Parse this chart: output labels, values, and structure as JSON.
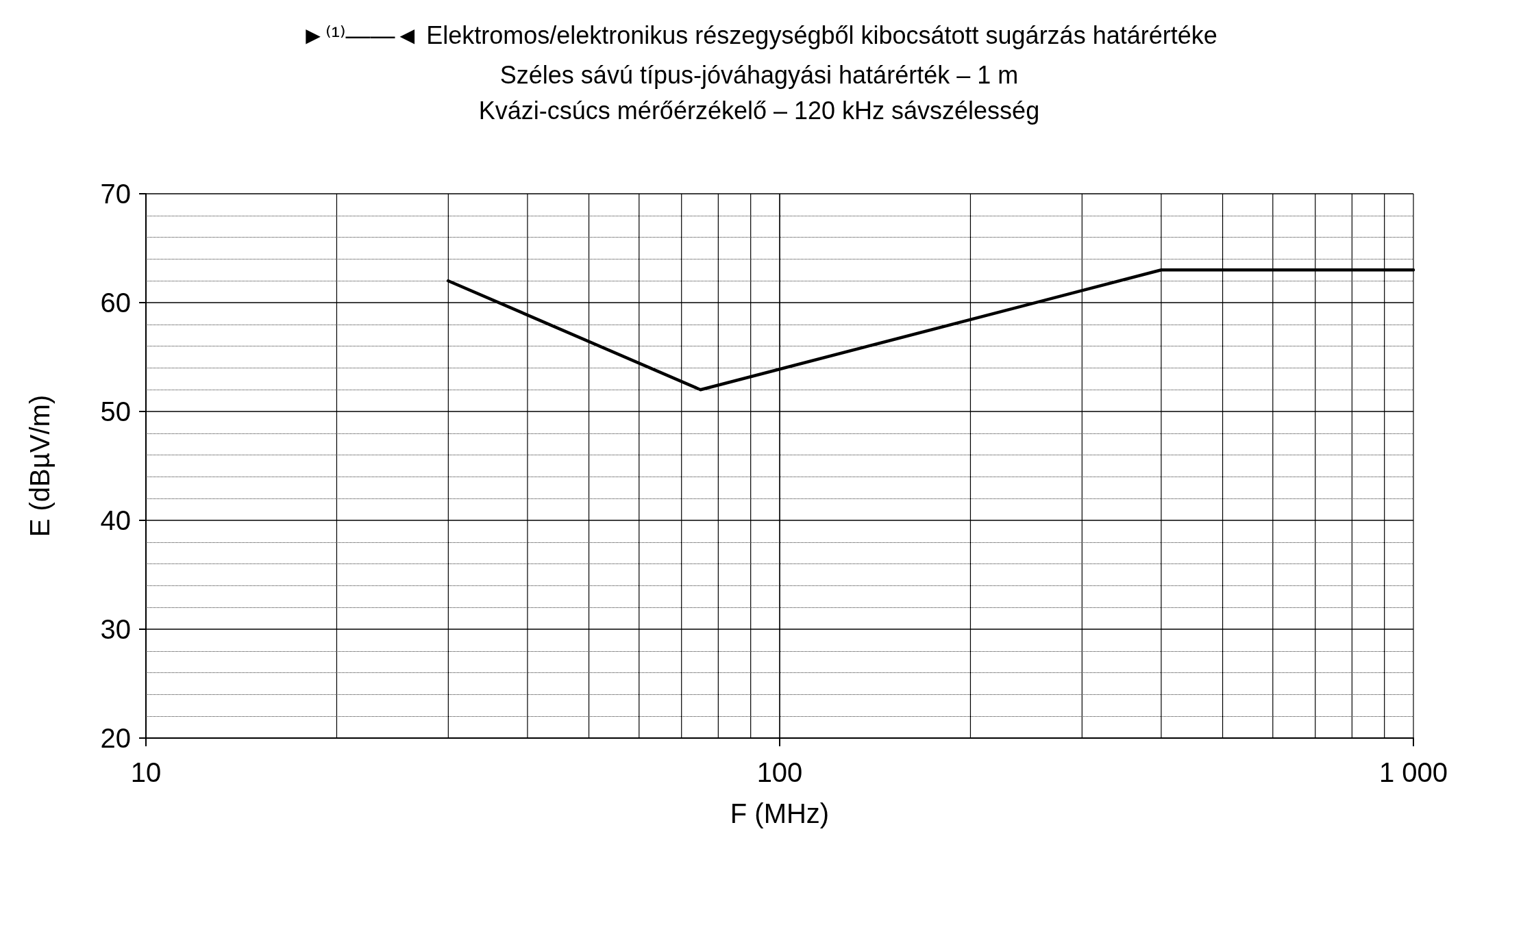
{
  "chart_data": {
    "type": "line",
    "title": "►⁽¹⁾——◄ Elektromos/elektronikus részegységből kibocsátott sugárzás határértéke",
    "subtitle": "Széles sávú típus-jóváhagyási határérték – 1 m\nKvázi-csúcs mérőérzékelő – 120 kHz sávszélesség",
    "xlabel": "F (MHz)",
    "ylabel": "E (dBµV/m)",
    "x": [
      30,
      75,
      400,
      1000
    ],
    "series": [
      {
        "color": "#000000",
        "values": [
          62,
          52,
          63,
          63
        ]
      }
    ],
    "log": "x",
    "xlim": [
      10,
      1000
    ],
    "xticks": [
      10,
      100,
      {
        "value": 1000,
        "label": "1 000"
      }
    ],
    "ylim": [
      20,
      70
    ],
    "yticks": [
      20,
      30,
      40,
      50,
      60,
      70
    ],
    "grid": true,
    "marker": "none",
    "line_style": "solid"
  }
}
